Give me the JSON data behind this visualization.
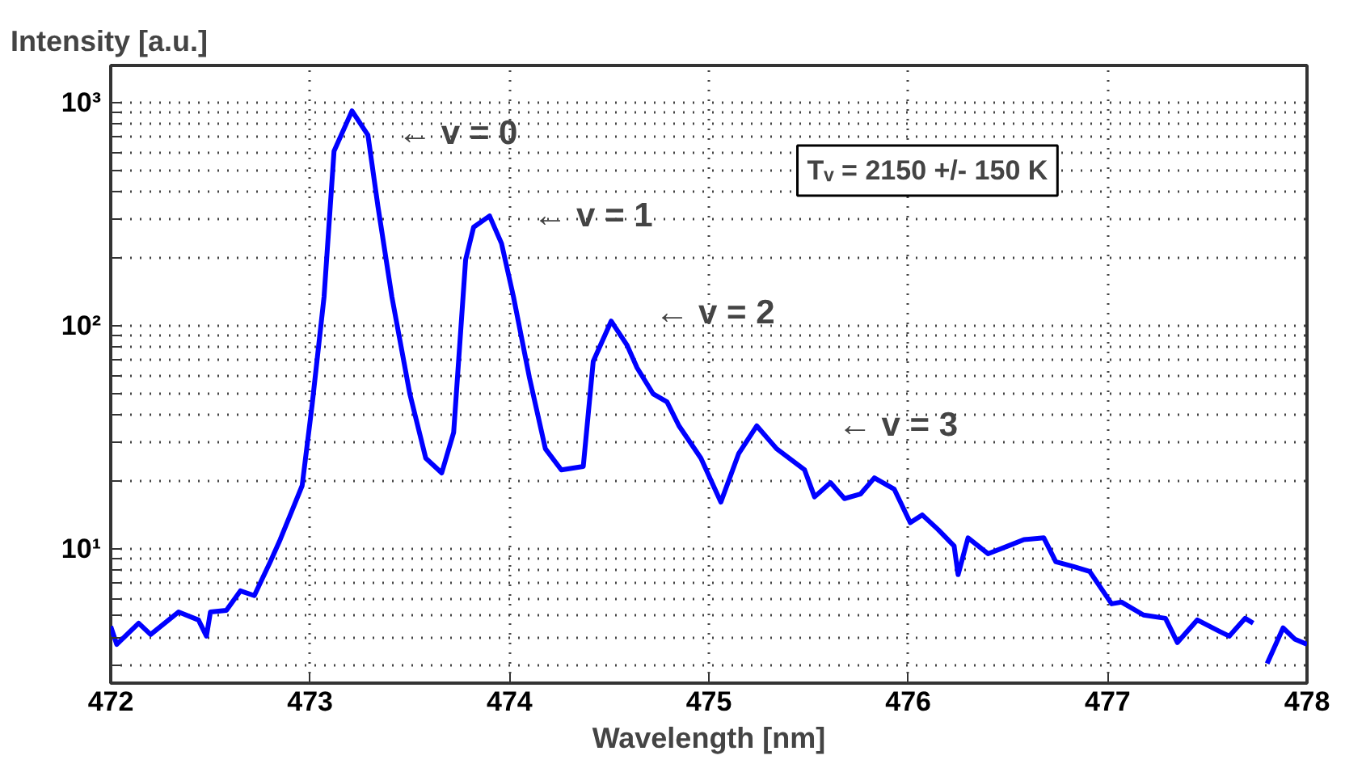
{
  "chart_data": {
    "type": "line",
    "xlabel": "Wavelength [nm]",
    "ylabel": "Intensity [a.u.]",
    "log": "y",
    "grid": true,
    "line_style": "solid",
    "marker": "none",
    "xlim": [
      472,
      478
    ],
    "xticks": [
      472,
      473,
      474,
      475,
      476,
      477,
      478
    ],
    "ylim": [
      2.5,
      1470
    ],
    "yticks": [
      {
        "value": 3,
        "label": null
      },
      {
        "value": 4,
        "label": null
      },
      {
        "value": 5,
        "label": null
      },
      {
        "value": 6,
        "label": null
      },
      {
        "value": 7,
        "label": null
      },
      {
        "value": 8,
        "label": null
      },
      {
        "value": 9,
        "label": null
      },
      {
        "value": 10,
        "label": "10¹"
      },
      {
        "value": 20,
        "label": null
      },
      {
        "value": 30,
        "label": null
      },
      {
        "value": 40,
        "label": null
      },
      {
        "value": 50,
        "label": null
      },
      {
        "value": 60,
        "label": null
      },
      {
        "value": 70,
        "label": null
      },
      {
        "value": 80,
        "label": null
      },
      {
        "value": 90,
        "label": null
      },
      {
        "value": 100,
        "label": "10²"
      },
      {
        "value": 200,
        "label": null
      },
      {
        "value": 300,
        "label": null
      },
      {
        "value": 400,
        "label": null
      },
      {
        "value": 500,
        "label": null
      },
      {
        "value": 600,
        "label": null
      },
      {
        "value": 700,
        "label": null
      },
      {
        "value": 800,
        "label": null
      },
      {
        "value": 900,
        "label": null
      },
      {
        "value": 1000,
        "label": "10³"
      }
    ],
    "annotations": [
      "← v = 0",
      "← v = 1",
      "← v = 2",
      "← v = 3",
      "Tᵥ = 2150 +/- 150 K"
    ],
    "series": [
      {
        "color": "#0000ff",
        "x": [
          472.0,
          472.03,
          472.14,
          472.2,
          472.34,
          472.44,
          472.48,
          472.5,
          472.58,
          472.65,
          472.72,
          472.8,
          472.85,
          472.91,
          472.96,
          473.01,
          473.07,
          473.12,
          473.21,
          473.29,
          473.34,
          473.41,
          473.5,
          473.58,
          473.66,
          473.72,
          473.78,
          473.82,
          473.9,
          473.96,
          474.02,
          474.1,
          474.18,
          474.26,
          474.37,
          474.42,
          474.51,
          474.59,
          474.64,
          474.72,
          474.79,
          474.85,
          474.96,
          475.06,
          475.15,
          475.24,
          475.34,
          475.48,
          475.53,
          475.61,
          475.68,
          475.76,
          475.83,
          475.93,
          476.01,
          476.07,
          476.15,
          476.23,
          476.25,
          476.3,
          476.4,
          476.5,
          476.58,
          476.68,
          476.74,
          476.83,
          476.91,
          477.02,
          477.07,
          477.18,
          477.29,
          477.35,
          477.45,
          477.56,
          477.61,
          477.69,
          477.73,
          477.76,
          477.8,
          477.88,
          477.94,
          478.0
        ],
        "values": [
          4.49,
          3.73,
          4.64,
          4.13,
          5.21,
          4.8,
          4.06,
          5.21,
          5.3,
          6.48,
          6.17,
          8.75,
          11.0,
          14.9,
          19.2,
          44.2,
          135,
          607,
          920,
          716,
          344,
          135,
          49.6,
          25.5,
          21.9,
          33.3,
          198,
          277,
          311,
          234,
          135,
          58.6,
          28.1,
          22.6,
          23.4,
          69.3,
          105,
          81.8,
          64.8,
          49.6,
          45.6,
          35.6,
          25.5,
          16.2,
          26.8,
          35.6,
          28.1,
          22.6,
          17.1,
          19.8,
          16.8,
          17.6,
          20.8,
          18.5,
          13.1,
          14.2,
          12.2,
          10.3,
          7.66,
          11.2,
          9.51,
          10.3,
          11.0,
          11.2,
          8.75,
          8.32,
          7.92,
          5.67,
          5.77,
          5.05,
          4.88,
          3.8,
          4.8,
          4.27,
          4.06,
          4.88,
          4.64,
          null,
          3.06,
          4.42,
          3.93,
          3.73
        ]
      }
    ]
  }
}
